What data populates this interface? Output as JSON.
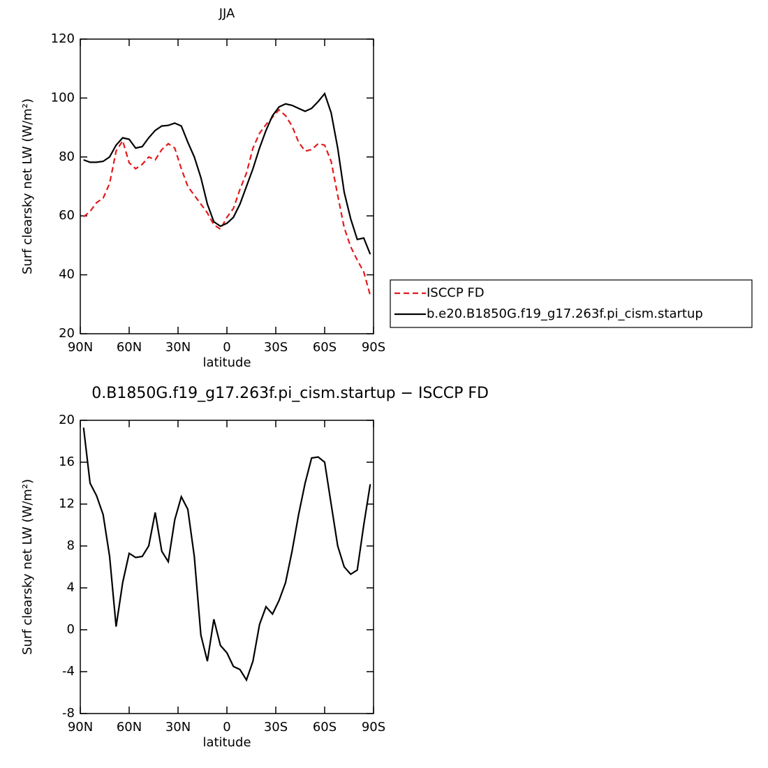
{
  "chart_data": [
    {
      "type": "line",
      "title": "JJA",
      "xlabel": "latitude",
      "ylabel": "Surf clearsky net LW (W/m²)",
      "x": [
        88,
        84,
        80,
        76,
        72,
        68,
        64,
        60,
        56,
        52,
        48,
        44,
        40,
        36,
        32,
        28,
        24,
        20,
        16,
        12,
        8,
        4,
        0,
        -4,
        -8,
        -12,
        -16,
        -20,
        -24,
        -28,
        -32,
        -36,
        -40,
        -44,
        -48,
        -52,
        -56,
        -60,
        -64,
        -68,
        -72,
        -76,
        -80,
        -84,
        -88
      ],
      "xlim": [
        90,
        -90
      ],
      "xticks": [
        {
          "value": 90,
          "label": "90N"
        },
        {
          "value": 60,
          "label": "60N"
        },
        {
          "value": 30,
          "label": "30N"
        },
        0,
        {
          "value": -30,
          "label": "30S"
        },
        {
          "value": -60,
          "label": "60S"
        },
        {
          "value": -90,
          "label": "90S"
        }
      ],
      "ylim": [
        20,
        120
      ],
      "yticks": [
        20,
        40,
        60,
        80,
        100,
        120
      ],
      "legend": "right",
      "series": [
        {
          "name": "ISCCP FD",
          "color": "#e31a1c",
          "dashed": true,
          "values": [
            59.7,
            61.5,
            64.5,
            66,
            71,
            82,
            85.5,
            78,
            76,
            77.5,
            80,
            79,
            82.5,
            84.5,
            83,
            76,
            70,
            67,
            64,
            61,
            57,
            55.5,
            59.5,
            62.5,
            69,
            74.5,
            83,
            88,
            91,
            93.5,
            96,
            94,
            90.5,
            85,
            82,
            82.5,
            84.5,
            84,
            78.5,
            67,
            56,
            49.5,
            45,
            41,
            33
          ]
        },
        {
          "name": "b.e20.B1850G.f19_g17.263f.pi_cism.startup",
          "color": "#000000",
          "dashed": false,
          "values": [
            79,
            78.2,
            78.2,
            78.5,
            80,
            84,
            86.5,
            86,
            83,
            83.5,
            86.5,
            89,
            90.5,
            90.7,
            91.5,
            90.5,
            85,
            80,
            73,
            64,
            58,
            56.5,
            57.5,
            59.5,
            64,
            70,
            76,
            83,
            89,
            94,
            97,
            98,
            97.5,
            96.5,
            95.5,
            96.5,
            98.8,
            101.5,
            95,
            83,
            68,
            59,
            52,
            52.5,
            47
          ]
        }
      ]
    },
    {
      "type": "line",
      "title": "0.B1850G.f19_g17.263f.pi_cism.startup − ISCCP FD",
      "xlabel": "latitude",
      "ylabel": "Surf clearsky net LW (W/m²)",
      "x": [
        88,
        84,
        80,
        76,
        72,
        68,
        64,
        60,
        56,
        52,
        48,
        44,
        40,
        36,
        32,
        28,
        24,
        20,
        16,
        12,
        8,
        4,
        0,
        -4,
        -8,
        -12,
        -16,
        -20,
        -24,
        -28,
        -32,
        -36,
        -40,
        -44,
        -48,
        -52,
        -56,
        -60,
        -64,
        -68,
        -72,
        -76,
        -80,
        -84,
        -88
      ],
      "xlim": [
        90,
        -90
      ],
      "xticks": [
        {
          "value": 90,
          "label": "90N"
        },
        {
          "value": 60,
          "label": "60N"
        },
        {
          "value": 30,
          "label": "30N"
        },
        0,
        {
          "value": -30,
          "label": "30S"
        },
        {
          "value": -60,
          "label": "60S"
        },
        {
          "value": -90,
          "label": "90S"
        }
      ],
      "ylim": [
        -8,
        20
      ],
      "yticks": [
        -8,
        -4,
        0,
        4,
        8,
        12,
        16,
        20
      ],
      "series": [
        {
          "color": "#000000",
          "dashed": false,
          "values": [
            19.3,
            14,
            12.8,
            11,
            7,
            0.3,
            4.5,
            7.3,
            6.9,
            7,
            8,
            11.2,
            7.5,
            6.5,
            10.5,
            12.7,
            11.5,
            7,
            -0.5,
            -3,
            1,
            -1.5,
            -2.2,
            -3.5,
            -3.8,
            -4.8,
            -3,
            0.5,
            2.2,
            1.5,
            2.8,
            4.5,
            7.5,
            11,
            14,
            16.4,
            16.5,
            16,
            12,
            8,
            6,
            5.3,
            5.7,
            10,
            13.9
          ]
        }
      ]
    }
  ]
}
